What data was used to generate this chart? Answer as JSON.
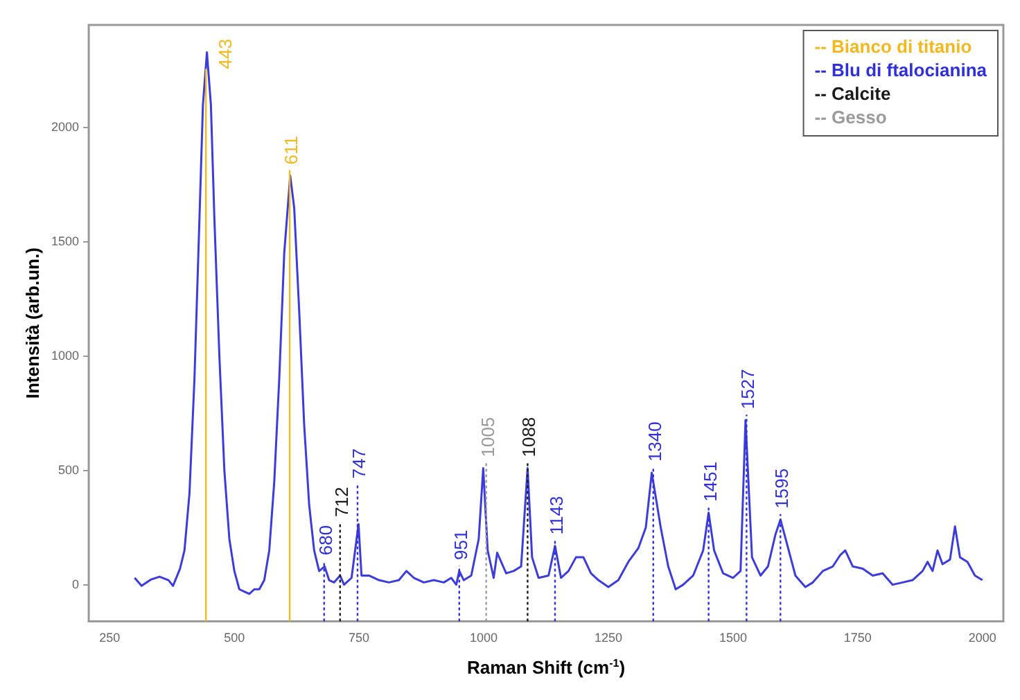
{
  "chart_data": {
    "type": "line",
    "xlabel": "Raman Shift (cm$^{-1}$)",
    "ylabel": "Intensità (arb.un.)",
    "xlim": [
      208,
      2042
    ],
    "xticks": [
      250,
      500,
      750,
      1000,
      1250,
      1500,
      1750,
      2000
    ],
    "ylim": [
      -160,
      2450
    ],
    "yticks": [
      0,
      500,
      1000,
      1500,
      2000
    ],
    "grid": false,
    "marker": "none",
    "line_style": "solid",
    "legend": "top right",
    "series": [
      {
        "color": "#3c3cdc",
        "x": [
          300,
          314,
          332,
          350,
          368,
          377,
          391,
          400,
          410,
          420,
          430,
          437,
          445,
          453,
          460,
          470,
          480,
          490,
          500,
          510,
          520,
          530,
          540,
          550,
          560,
          570,
          580,
          590,
          600,
          612,
          620,
          630,
          640,
          650,
          660,
          670,
          681,
          690,
          700,
          712,
          720,
          735,
          749,
          755,
          770,
          790,
          810,
          830,
          845,
          860,
          880,
          900,
          920,
          935,
          945,
          951,
          960,
          975,
          990,
          999,
          1008,
          1020,
          1027,
          1045,
          1060,
          1075,
          1088,
          1097,
          1110,
          1130,
          1143,
          1155,
          1170,
          1185,
          1200,
          1215,
          1230,
          1250,
          1270,
          1290,
          1310,
          1325,
          1337,
          1355,
          1370,
          1385,
          1400,
          1420,
          1440,
          1451,
          1462,
          1480,
          1500,
          1515,
          1525,
          1538,
          1555,
          1570,
          1585,
          1595,
          1608,
          1625,
          1645,
          1660,
          1680,
          1700,
          1715,
          1725,
          1740,
          1760,
          1780,
          1800,
          1820,
          1840,
          1860,
          1880,
          1890,
          1900,
          1910,
          1920,
          1935,
          1945,
          1955,
          1970,
          1985,
          2000
        ],
        "values": [
          30,
          -5,
          22,
          35,
          20,
          -5,
          70,
          150,
          400,
          900,
          1600,
          2100,
          2330,
          2100,
          1600,
          1000,
          500,
          200,
          60,
          -20,
          -30,
          -40,
          -20,
          -20,
          20,
          150,
          450,
          900,
          1450,
          1790,
          1650,
          1200,
          700,
          350,
          150,
          60,
          80,
          20,
          10,
          40,
          0,
          30,
          265,
          40,
          40,
          20,
          10,
          20,
          60,
          30,
          10,
          20,
          10,
          30,
          0,
          60,
          20,
          40,
          200,
          510,
          150,
          30,
          140,
          50,
          60,
          80,
          510,
          120,
          30,
          40,
          170,
          30,
          60,
          120,
          120,
          50,
          20,
          -10,
          20,
          100,
          160,
          250,
          490,
          250,
          80,
          -20,
          0,
          40,
          150,
          315,
          150,
          50,
          30,
          60,
          720,
          120,
          40,
          80,
          220,
          285,
          180,
          40,
          -10,
          10,
          60,
          80,
          130,
          150,
          80,
          70,
          40,
          50,
          0,
          10,
          20,
          60,
          100,
          60,
          150,
          90,
          110,
          255,
          120,
          100,
          40,
          20
        ]
      }
    ],
    "ref_lines": [
      {
        "axis": "x",
        "value": 443,
        "label": "443",
        "color": "#f2b81f",
        "line_style": "solid"
      },
      {
        "axis": "x",
        "value": 611,
        "label": "611",
        "color": "#f2b81f",
        "line_style": "solid"
      },
      {
        "axis": "x",
        "value": 680,
        "label": "680",
        "color": "#3030d8",
        "line_style": "dotted"
      },
      {
        "axis": "x",
        "value": 712,
        "label": "712",
        "color": "#1a1a1a",
        "line_style": "dotted"
      },
      {
        "axis": "x",
        "value": 747,
        "label": "747",
        "color": "#3030d8",
        "line_style": "dotted"
      },
      {
        "axis": "x",
        "value": 951,
        "label": "951",
        "color": "#3030d8",
        "line_style": "dotted"
      },
      {
        "axis": "x",
        "value": 1005,
        "label": "1005",
        "color": "#9a9a9a",
        "line_style": "dotted"
      },
      {
        "axis": "x",
        "value": 1088,
        "label": "1088",
        "color": "#1a1a1a",
        "line_style": "dotted"
      },
      {
        "axis": "x",
        "value": 1143,
        "label": "1143",
        "color": "#3030d8",
        "line_style": "dotted"
      },
      {
        "axis": "x",
        "value": 1340,
        "label": "1340",
        "color": "#3030d8",
        "line_style": "dotted"
      },
      {
        "axis": "x",
        "value": 1451,
        "label": "1451",
        "color": "#3030d8",
        "line_style": "dotted"
      },
      {
        "axis": "x",
        "value": 1527,
        "label": "1527",
        "color": "#3030d8",
        "line_style": "dotted"
      },
      {
        "axis": "x",
        "value": 1595,
        "label": "1595",
        "color": "#3030d8",
        "line_style": "dotted"
      }
    ],
    "annotations": [
      "-- Bianco di titanio",
      "-- Blu di ftalocianina",
      "-- Calcite",
      "-- Gesso"
    ]
  }
}
